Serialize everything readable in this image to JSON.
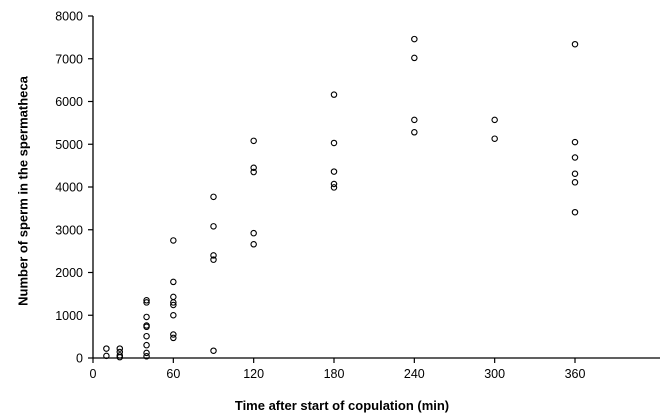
{
  "chart_data": {
    "type": "scatter",
    "title": "",
    "xlabel": "Time after start of copulation (min)",
    "ylabel": "Number of sperm in the spermatheca",
    "xlim": [
      0,
      390
    ],
    "ylim": [
      0,
      8000
    ],
    "xticks": [
      0,
      60,
      120,
      180,
      240,
      300,
      360
    ],
    "yticks": [
      0,
      1000,
      2000,
      3000,
      4000,
      5000,
      6000,
      7000,
      8000
    ],
    "grid": false,
    "legend": "none",
    "marker": "open-circle",
    "series": [
      {
        "points": [
          [
            10,
            220
          ],
          [
            10,
            50
          ],
          [
            20,
            220
          ],
          [
            20,
            140
          ],
          [
            20,
            60
          ],
          [
            20,
            20
          ],
          [
            40,
            1350
          ],
          [
            40,
            1300
          ],
          [
            40,
            960
          ],
          [
            40,
            760
          ],
          [
            40,
            730
          ],
          [
            40,
            510
          ],
          [
            40,
            300
          ],
          [
            40,
            120
          ],
          [
            40,
            40
          ],
          [
            60,
            2750
          ],
          [
            60,
            1780
          ],
          [
            60,
            1430
          ],
          [
            60,
            1300
          ],
          [
            60,
            1240
          ],
          [
            60,
            1000
          ],
          [
            60,
            550
          ],
          [
            60,
            470
          ],
          [
            90,
            3770
          ],
          [
            90,
            3080
          ],
          [
            90,
            2400
          ],
          [
            90,
            2300
          ],
          [
            90,
            170
          ],
          [
            120,
            5080
          ],
          [
            120,
            4450
          ],
          [
            120,
            4350
          ],
          [
            120,
            2920
          ],
          [
            120,
            2660
          ],
          [
            180,
            6160
          ],
          [
            180,
            5030
          ],
          [
            180,
            4360
          ],
          [
            180,
            4070
          ],
          [
            180,
            3990
          ],
          [
            240,
            7460
          ],
          [
            240,
            7020
          ],
          [
            240,
            5570
          ],
          [
            240,
            5280
          ],
          [
            300,
            5570
          ],
          [
            300,
            5130
          ],
          [
            360,
            7340
          ],
          [
            360,
            5050
          ],
          [
            360,
            4690
          ],
          [
            360,
            4310
          ],
          [
            360,
            4110
          ],
          [
            360,
            3410
          ]
        ]
      }
    ]
  }
}
